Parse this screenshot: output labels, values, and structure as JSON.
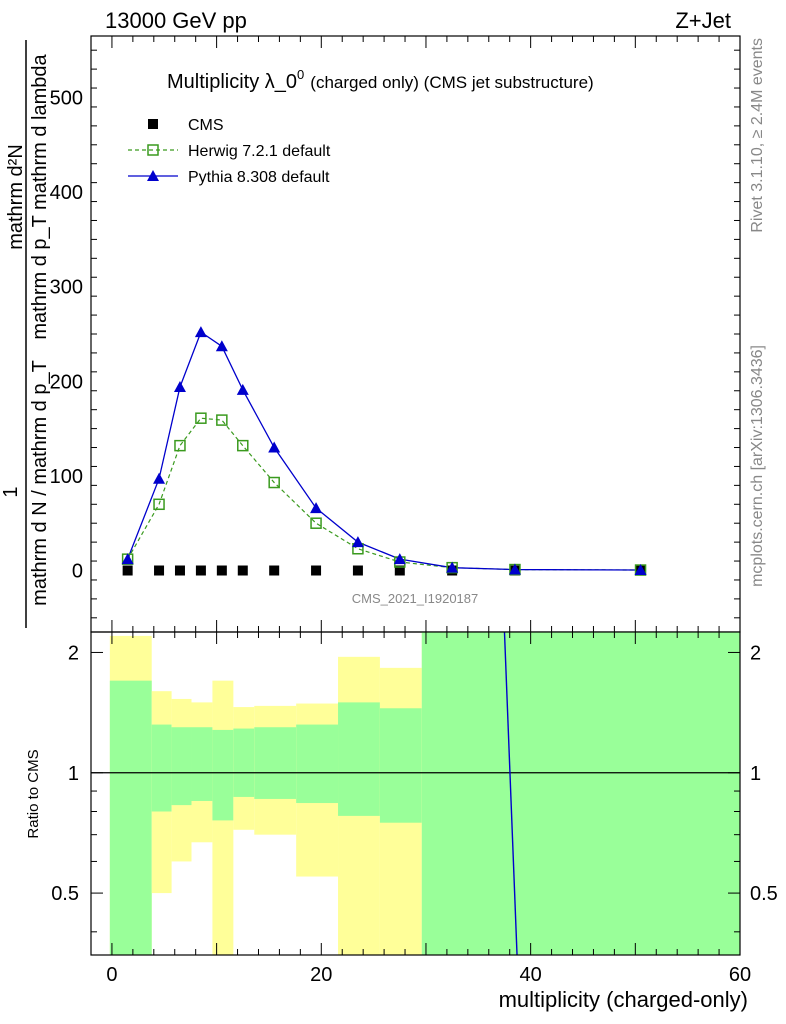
{
  "header": {
    "left": "13000 GeV pp",
    "right": "Z+Jet"
  },
  "side_labels": {
    "rivet": "Rivet 3.1.10, ≥ 2.4M events",
    "mcplots": "mcplots.cern.ch [arXiv:1306.3436]"
  },
  "chart_data": [
    {
      "type": "line",
      "title": "Multiplicity λ_0",
      "title_superscript": "0",
      "title_suffix": "(charged only) (CMS jet substructure)",
      "analysis_label": "CMS_2021_I1920187",
      "ylabel_top": "1",
      "ylabel_num": "mathrm d²N",
      "ylabel_num2": "mathrm d p_T mathrm d lambda",
      "ylabel_den": "mathrm d N / mathrm d p_T",
      "ylabel_den_sub": "T",
      "xlim": [
        -2,
        60
      ],
      "ylim": [
        -65,
        565
      ],
      "yticks": [
        0,
        100,
        200,
        300,
        400,
        500
      ],
      "legend": {
        "placement": "top-left"
      },
      "series": [
        {
          "name": "CMS",
          "color": "#000000",
          "marker": "filled-square",
          "x": [
            1.5,
            4.5,
            6.5,
            8.5,
            10.5,
            12.5,
            15.5,
            19.5,
            23.5,
            27.5,
            32.5,
            38.5,
            50.5
          ],
          "y": [
            0,
            0,
            0,
            0,
            0,
            0,
            0,
            0,
            0,
            0,
            0,
            0,
            0
          ]
        },
        {
          "name": "Herwig 7.2.1 default",
          "color": "#3a9a1e",
          "marker": "open-square",
          "line": "dashed",
          "x": [
            1.5,
            4.5,
            6.5,
            8.5,
            10.5,
            12.5,
            15.5,
            19.5,
            23.5,
            27.5,
            32.5,
            38.5,
            50.5
          ],
          "y": [
            12,
            70,
            132,
            161,
            159,
            132,
            93,
            50,
            23,
            9,
            3,
            1,
            0.5
          ]
        },
        {
          "name": "Pythia 8.308 default",
          "color": "#0000cc",
          "marker": "filled-triangle",
          "line": "solid",
          "x": [
            1.5,
            4.5,
            6.5,
            8.5,
            10.5,
            12.5,
            15.5,
            19.5,
            23.5,
            27.5,
            32.5,
            38.5,
            50.5
          ],
          "y": [
            12,
            97,
            194,
            252,
            237,
            191,
            130,
            66,
            30,
            12,
            3,
            1,
            0.5
          ]
        }
      ]
    },
    {
      "type": "area",
      "ylabel": "Ratio to CMS",
      "xlabel": "multiplicity (charged-only)",
      "xlim": [
        -2,
        60
      ],
      "ylim": [
        0.35,
        2.25
      ],
      "xticks": [
        0,
        20,
        40,
        60
      ],
      "yticks": [
        0.5,
        1,
        2
      ],
      "reference_line": 1,
      "bands": {
        "bin_edges": [
          -0.2,
          3.8,
          5.7,
          7.6,
          9.6,
          11.6,
          13.6,
          17.6,
          21.6,
          25.6,
          29.6,
          60
        ],
        "inner": {
          "color": "#99ff99",
          "lo": [
            0.35,
            0.8,
            0.83,
            0.85,
            0.76,
            0.87,
            0.86,
            0.84,
            0.78,
            0.75,
            0.35
          ],
          "hi": [
            1.7,
            1.32,
            1.3,
            1.3,
            1.28,
            1.29,
            1.3,
            1.32,
            1.5,
            1.45,
            2.25
          ]
        },
        "outer": {
          "color": "#ffff99",
          "lo": [
            0.35,
            0.5,
            0.6,
            0.67,
            0.35,
            0.72,
            0.7,
            0.55,
            0.35,
            0.35,
            0.35
          ],
          "hi": [
            2.2,
            1.6,
            1.53,
            1.5,
            1.7,
            1.46,
            1.47,
            1.49,
            1.95,
            1.83,
            2.35
          ]
        }
      },
      "series": [
        {
          "name": "Pythia 8.308 default",
          "color": "#0000cc",
          "x": [
            37.5,
            38.7
          ],
          "y": [
            2.25,
            0.35
          ]
        }
      ]
    }
  ]
}
